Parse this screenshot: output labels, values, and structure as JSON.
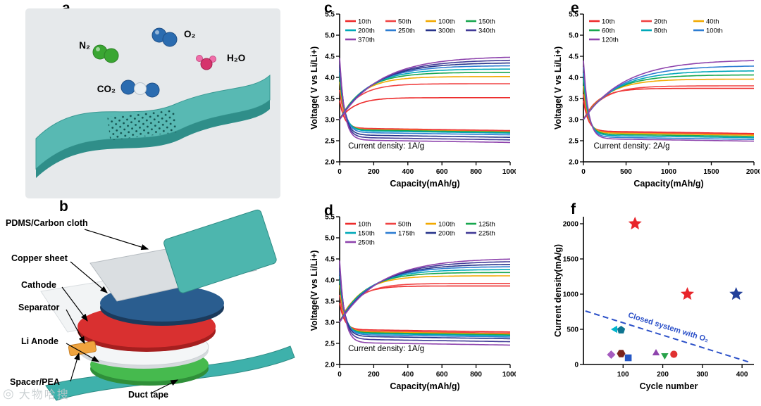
{
  "watermark": {
    "text": "大物哈搜",
    "icon": "watermark-logo"
  },
  "panels": {
    "a": {
      "letter": "a",
      "molecules": [
        {
          "name": "nitrogen",
          "label": "N₂"
        },
        {
          "name": "oxygen",
          "label": "O₂"
        },
        {
          "name": "carbon-dioxide",
          "label": "CO₂"
        },
        {
          "name": "water",
          "label": "H₂O"
        }
      ]
    },
    "b": {
      "letter": "b",
      "labels": [
        "PDMS/Carbon cloth",
        "Copper sheet",
        "Cathode",
        "Separator",
        "Li Anode",
        "Spacer/PEA",
        "Duct tape"
      ]
    },
    "c": {
      "letter": "c"
    },
    "d": {
      "letter": "d"
    },
    "e": {
      "letter": "e"
    },
    "f": {
      "letter": "f"
    }
  },
  "chart_data": [
    {
      "id": "c",
      "type": "line",
      "xlabel": "Capacity(mAh/g)",
      "ylabel": "Voltage( V vs Li/Li+)",
      "xlim": [
        0,
        1000
      ],
      "ylim": [
        2.0,
        5.5
      ],
      "xticks": [
        0,
        200,
        400,
        600,
        800,
        1000
      ],
      "yticks": [
        2.0,
        2.5,
        3.0,
        3.5,
        4.0,
        4.5,
        5.0,
        5.5
      ],
      "ytick_decimals": 1,
      "legend_cols": 4,
      "legend_col_w": 57,
      "annotation": {
        "text": "Current density: 1A/g",
        "x": 50,
        "y": 2.32
      },
      "series": [
        {
          "label": "10th",
          "color": "#ed2b2b",
          "discharge_start_V": 3.45,
          "discharge_end_V": 2.8,
          "charge_start_V": 3.0,
          "charge_end_V": 3.52
        },
        {
          "label": "50th",
          "color": "#f04343",
          "discharge_start_V": 3.7,
          "discharge_end_V": 2.79,
          "charge_start_V": 3.0,
          "charge_end_V": 3.85
        },
        {
          "label": "100th",
          "color": "#f2a900",
          "discharge_start_V": 3.9,
          "discharge_end_V": 2.77,
          "charge_start_V": 3.0,
          "charge_end_V": 4.02
        },
        {
          "label": "150th",
          "color": "#17a74e",
          "discharge_start_V": 4.02,
          "discharge_end_V": 2.76,
          "charge_start_V": 3.0,
          "charge_end_V": 4.12
        },
        {
          "label": "200th",
          "color": "#00a8b8",
          "discharge_start_V": 4.12,
          "discharge_end_V": 2.74,
          "charge_start_V": 3.0,
          "charge_end_V": 4.2
        },
        {
          "label": "250th",
          "color": "#2d7dd2",
          "discharge_start_V": 4.22,
          "discharge_end_V": 2.7,
          "charge_start_V": 3.0,
          "charge_end_V": 4.28
        },
        {
          "label": "300th",
          "color": "#27348b",
          "discharge_start_V": 4.3,
          "discharge_end_V": 2.64,
          "charge_start_V": 3.0,
          "charge_end_V": 4.35
        },
        {
          "label": "340th",
          "color": "#413a97",
          "discharge_start_V": 4.38,
          "discharge_end_V": 2.58,
          "charge_start_V": 3.0,
          "charge_end_V": 4.42
        },
        {
          "label": "370th",
          "color": "#8e44ad",
          "discharge_start_V": 4.46,
          "discharge_end_V": 2.52,
          "charge_start_V": 3.0,
          "charge_end_V": 4.5
        }
      ]
    },
    {
      "id": "d",
      "type": "line",
      "xlabel": "Capacity(mAh/g)",
      "ylabel": "Voltage(V vs Li/Li+)",
      "xlim": [
        0,
        1000
      ],
      "ylim": [
        2.0,
        5.5
      ],
      "xticks": [
        0,
        200,
        400,
        600,
        800,
        1000
      ],
      "yticks": [
        2.0,
        2.5,
        3.0,
        3.5,
        4.0,
        4.5,
        5.0,
        5.5
      ],
      "ytick_decimals": 1,
      "legend_cols": 4,
      "legend_col_w": 57,
      "annotation": {
        "text": "Current density: 1A/g",
        "x": 50,
        "y": 2.32
      },
      "series": [
        {
          "label": "10th",
          "color": "#ed2b2b",
          "discharge_start_V": 3.45,
          "discharge_end_V": 2.83,
          "charge_start_V": 3.0,
          "charge_end_V": 3.86
        },
        {
          "label": "50th",
          "color": "#f04343",
          "discharge_start_V": 3.65,
          "discharge_end_V": 2.8,
          "charge_start_V": 3.0,
          "charge_end_V": 3.92
        },
        {
          "label": "100th",
          "color": "#f2a900",
          "discharge_start_V": 3.88,
          "discharge_end_V": 2.78,
          "charge_start_V": 3.0,
          "charge_end_V": 4.1
        },
        {
          "label": "125th",
          "color": "#17a74e",
          "discharge_start_V": 4.0,
          "discharge_end_V": 2.76,
          "charge_start_V": 3.0,
          "charge_end_V": 4.18
        },
        {
          "label": "150th",
          "color": "#00a8b8",
          "discharge_start_V": 4.1,
          "discharge_end_V": 2.74,
          "charge_start_V": 3.0,
          "charge_end_V": 4.25
        },
        {
          "label": "175th",
          "color": "#2d7dd2",
          "discharge_start_V": 4.2,
          "discharge_end_V": 2.71,
          "charge_start_V": 3.0,
          "charge_end_V": 4.32
        },
        {
          "label": "200th",
          "color": "#27348b",
          "discharge_start_V": 4.28,
          "discharge_end_V": 2.67,
          "charge_start_V": 3.0,
          "charge_end_V": 4.38
        },
        {
          "label": "225th",
          "color": "#413a97",
          "discharge_start_V": 4.37,
          "discharge_end_V": 2.6,
          "charge_start_V": 3.0,
          "charge_end_V": 4.45
        },
        {
          "label": "250th",
          "color": "#8e44ad",
          "discharge_start_V": 4.46,
          "discharge_end_V": 2.52,
          "charge_start_V": 3.0,
          "charge_end_V": 4.52
        }
      ]
    },
    {
      "id": "e",
      "type": "line",
      "xlabel": "Capacity(mAh/g)",
      "ylabel": "Voltage( V vs Li/Li+)",
      "xlim": [
        0,
        2000
      ],
      "ylim": [
        2.0,
        5.5
      ],
      "xticks": [
        0,
        500,
        1000,
        1500,
        2000
      ],
      "yticks": [
        2.0,
        2.5,
        3.0,
        3.5,
        4.0,
        4.5,
        5.0,
        5.5
      ],
      "ytick_decimals": 1,
      "legend_cols": 3,
      "legend_col_w": 74,
      "annotation": {
        "text": "Current density: 2A/g",
        "x": 120,
        "y": 2.32
      },
      "series": [
        {
          "label": "10th",
          "color": "#ed2b2b",
          "discharge_start_V": 3.45,
          "discharge_end_V": 2.73,
          "charge_start_V": 3.0,
          "charge_end_V": 3.74
        },
        {
          "label": "20th",
          "color": "#f04343",
          "discharge_start_V": 3.6,
          "discharge_end_V": 2.71,
          "charge_start_V": 3.0,
          "charge_end_V": 3.8
        },
        {
          "label": "40th",
          "color": "#f2a900",
          "discharge_start_V": 3.8,
          "discharge_end_V": 2.69,
          "charge_start_V": 3.0,
          "charge_end_V": 3.96
        },
        {
          "label": "60th",
          "color": "#17a74e",
          "discharge_start_V": 3.95,
          "discharge_end_V": 2.66,
          "charge_start_V": 3.0,
          "charge_end_V": 4.06
        },
        {
          "label": "80th",
          "color": "#00a8b8",
          "discharge_start_V": 4.1,
          "discharge_end_V": 2.63,
          "charge_start_V": 3.0,
          "charge_end_V": 4.16
        },
        {
          "label": "100th",
          "color": "#2d7dd2",
          "discharge_start_V": 4.25,
          "discharge_end_V": 2.59,
          "charge_start_V": 3.0,
          "charge_end_V": 4.28
        },
        {
          "label": "120th",
          "color": "#8e44ad",
          "discharge_start_V": 4.4,
          "discharge_end_V": 2.55,
          "charge_start_V": 3.0,
          "charge_end_V": 4.42
        }
      ]
    },
    {
      "id": "f",
      "type": "scatter",
      "xlabel": "Cycle number",
      "ylabel": "Current density(mA/g)",
      "xlim": [
        0,
        430
      ],
      "ylim": [
        0,
        2100
      ],
      "xticks": [
        100,
        200,
        300,
        400
      ],
      "yticks": [
        0,
        500,
        1000,
        1500,
        2000
      ],
      "ytick_decimals": 0,
      "line": {
        "x1": 5,
        "y1": 760,
        "x2": 420,
        "y2": 30,
        "label": "Closed system with O₂",
        "color": "#2b50c8"
      },
      "points": [
        {
          "x": 130,
          "y": 2000,
          "shape": "star",
          "color": "#e8242a",
          "size": 10
        },
        {
          "x": 262,
          "y": 1000,
          "shape": "star",
          "color": "#e8242a",
          "size": 10
        },
        {
          "x": 385,
          "y": 1000,
          "shape": "star",
          "color": "#23409a",
          "size": 10
        },
        {
          "x": 80,
          "y": 500,
          "shape": "triangle-left",
          "color": "#00b5cc",
          "size": 6
        },
        {
          "x": 95,
          "y": 490,
          "shape": "pentagon",
          "color": "#0e7490",
          "size": 6
        },
        {
          "x": 70,
          "y": 140,
          "shape": "diamond",
          "color": "#a55bbf",
          "size": 6
        },
        {
          "x": 95,
          "y": 155,
          "shape": "hexagon",
          "color": "#7b241c",
          "size": 6
        },
        {
          "x": 113,
          "y": 95,
          "shape": "square",
          "color": "#2456c4",
          "size": 6
        },
        {
          "x": 183,
          "y": 160,
          "shape": "triangle-up",
          "color": "#8e44ad",
          "size": 6
        },
        {
          "x": 205,
          "y": 130,
          "shape": "triangle-down",
          "color": "#27a24a",
          "size": 6
        },
        {
          "x": 228,
          "y": 145,
          "shape": "circle",
          "color": "#e03131",
          "size": 6
        }
      ]
    }
  ]
}
